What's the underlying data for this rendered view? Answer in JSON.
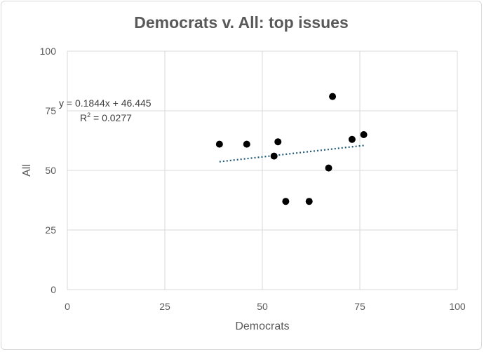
{
  "chart_data": {
    "type": "scatter",
    "title": "Democrats v. All: top issues",
    "xlabel": "Democrats",
    "ylabel": "All",
    "xlim": [
      0,
      100
    ],
    "ylim": [
      0,
      100
    ],
    "xticks": [
      0,
      25,
      50,
      75,
      100
    ],
    "yticks": [
      0,
      25,
      50,
      75,
      100
    ],
    "grid": true,
    "legend": "none",
    "marker_color": "#000000",
    "trendline_color": "#1f5a78",
    "series": [
      {
        "points": [
          {
            "x": 39,
            "y": 61
          },
          {
            "x": 46,
            "y": 61
          },
          {
            "x": 53,
            "y": 56
          },
          {
            "x": 54,
            "y": 62
          },
          {
            "x": 56,
            "y": 37
          },
          {
            "x": 62,
            "y": 37
          },
          {
            "x": 67,
            "y": 51
          },
          {
            "x": 68,
            "y": 81
          },
          {
            "x": 73,
            "y": 63
          },
          {
            "x": 76,
            "y": 65
          }
        ]
      }
    ],
    "trendline": {
      "type": "linear",
      "slope": 0.1844,
      "intercept": 46.445,
      "x_range": [
        39,
        76
      ],
      "equation_label": "y = 0.1844x + 46.445",
      "r2_prefix": "R",
      "r2_exp": "2",
      "r2_value": " = 0.0277"
    }
  }
}
